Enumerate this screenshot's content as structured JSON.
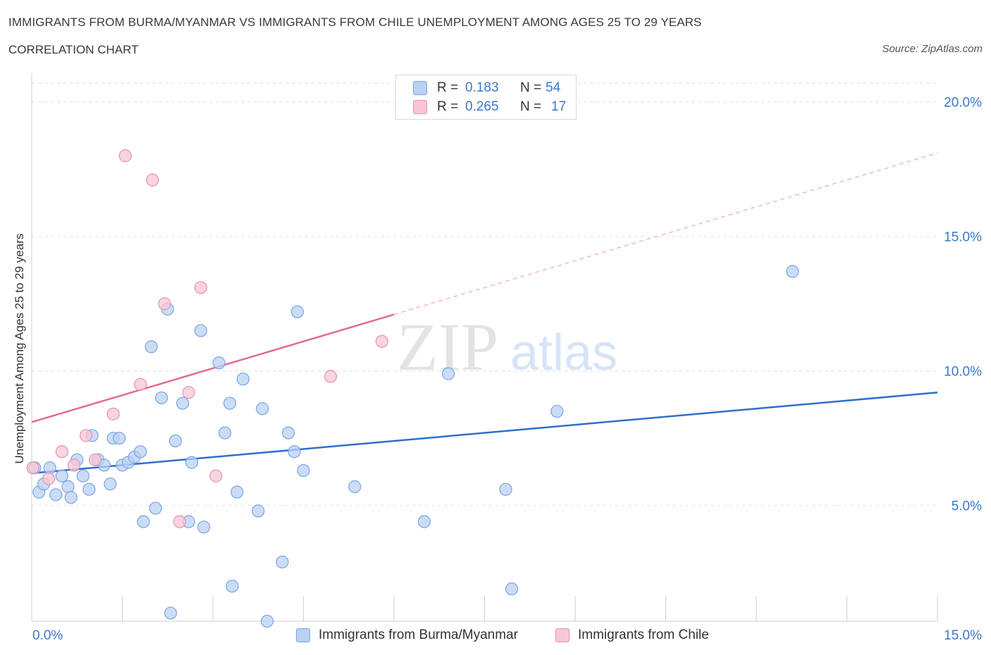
{
  "title": "IMMIGRANTS FROM BURMA/MYANMAR VS IMMIGRANTS FROM CHILE UNEMPLOYMENT AMONG AGES 25 TO 29 YEARS",
  "subtitle": "CORRELATION CHART",
  "source": "Source: ZipAtlas.com",
  "watermark": {
    "zip": "ZIP",
    "atlas": "atlas"
  },
  "legend": {
    "rows": [
      {
        "r_label": "R =",
        "r_value": "0.183",
        "n_label": "N =",
        "n_value": "54"
      },
      {
        "r_label": "R =",
        "r_value": "0.265",
        "n_label": "N =",
        "n_value": "17"
      }
    ]
  },
  "bottom_legend": {
    "series1": "Immigrants from Burma/Myanmar",
    "series2": "Immigrants from Chile"
  },
  "colors": {
    "blue_fill": "#b9d1f3",
    "blue_stroke": "#7aa5e0",
    "blue_line": "#2f6fcc",
    "pink_fill": "#f8c6d6",
    "pink_stroke": "#e792ad",
    "pink_line": "#e26a94",
    "tick_text": "#3d77c9"
  },
  "chart_data": {
    "type": "scatter",
    "title": "IMMIGRANTS FROM BURMA/MYANMAR VS IMMIGRANTS FROM CHILE UNEMPLOYMENT AMONG AGES 25 TO 29 YEARS",
    "xlabel": "",
    "ylabel": "Unemployment Among Ages 25 to 29 years",
    "xlim": [
      0,
      15
    ],
    "ylim": [
      0.7,
      20.7
    ],
    "x_ticks_labeled": [
      {
        "value": 0,
        "label": "0.0%"
      },
      {
        "value": 15,
        "label": "15.0%"
      }
    ],
    "y_ticks": [
      {
        "value": 5,
        "label": "5.0%"
      },
      {
        "value": 10,
        "label": "10.0%"
      },
      {
        "value": 15,
        "label": "15.0%"
      },
      {
        "value": 20,
        "label": "20.0%"
      }
    ],
    "grid": true,
    "legend_position": "top-center",
    "series": [
      {
        "name": "Immigrants from Burma/Myanmar",
        "color": "#b9d1f3",
        "points": [
          [
            0.05,
            6.4
          ],
          [
            0.12,
            5.5
          ],
          [
            0.3,
            6.4
          ],
          [
            0.4,
            5.4
          ],
          [
            0.5,
            6.1
          ],
          [
            0.6,
            5.7
          ],
          [
            0.65,
            5.3
          ],
          [
            0.75,
            6.7
          ],
          [
            0.85,
            6.1
          ],
          [
            0.95,
            5.6
          ],
          [
            1.0,
            7.6
          ],
          [
            1.1,
            6.7
          ],
          [
            1.2,
            6.5
          ],
          [
            1.3,
            5.8
          ],
          [
            1.35,
            7.5
          ],
          [
            1.45,
            7.5
          ],
          [
            1.5,
            6.5
          ],
          [
            1.6,
            6.6
          ],
          [
            1.7,
            6.8
          ],
          [
            1.8,
            7.0
          ],
          [
            1.85,
            4.4
          ],
          [
            1.98,
            10.9
          ],
          [
            2.05,
            4.9
          ],
          [
            2.15,
            9.0
          ],
          [
            2.25,
            12.3
          ],
          [
            2.3,
            1.0
          ],
          [
            2.38,
            7.4
          ],
          [
            2.5,
            8.8
          ],
          [
            2.6,
            4.4
          ],
          [
            2.65,
            6.6
          ],
          [
            2.8,
            11.5
          ],
          [
            2.85,
            4.2
          ],
          [
            3.1,
            10.3
          ],
          [
            3.2,
            7.7
          ],
          [
            3.28,
            8.8
          ],
          [
            3.32,
            2.0
          ],
          [
            3.4,
            5.5
          ],
          [
            3.5,
            9.7
          ],
          [
            3.75,
            4.8
          ],
          [
            3.82,
            8.6
          ],
          [
            3.9,
            0.7
          ],
          [
            4.15,
            2.9
          ],
          [
            4.25,
            7.7
          ],
          [
            4.35,
            7.0
          ],
          [
            4.4,
            12.2
          ],
          [
            4.5,
            6.3
          ],
          [
            5.35,
            5.7
          ],
          [
            6.5,
            4.4
          ],
          [
            6.9,
            9.9
          ],
          [
            7.85,
            5.6
          ],
          [
            7.95,
            1.9
          ],
          [
            8.7,
            8.5
          ],
          [
            12.6,
            13.7
          ],
          [
            0.2,
            5.8
          ]
        ]
      },
      {
        "name": "Immigrants from Chile",
        "color": "#f8c6d6",
        "points": [
          [
            0.02,
            6.4
          ],
          [
            0.28,
            6.0
          ],
          [
            0.5,
            7.0
          ],
          [
            0.7,
            6.5
          ],
          [
            0.9,
            7.6
          ],
          [
            1.05,
            6.7
          ],
          [
            1.35,
            8.4
          ],
          [
            1.55,
            18.0
          ],
          [
            1.8,
            9.5
          ],
          [
            2.0,
            17.1
          ],
          [
            2.2,
            12.5
          ],
          [
            2.45,
            4.4
          ],
          [
            2.6,
            9.2
          ],
          [
            2.8,
            13.1
          ],
          [
            3.05,
            6.1
          ],
          [
            4.95,
            9.8
          ],
          [
            5.8,
            11.1
          ]
        ]
      }
    ],
    "trend_lines": [
      {
        "series": "Immigrants from Burma/Myanmar",
        "from": [
          0,
          6.2
        ],
        "to": [
          15,
          9.2
        ],
        "style": "solid"
      },
      {
        "series": "Immigrants from Chile",
        "from": [
          0,
          8.1
        ],
        "to": [
          6.0,
          12.1
        ],
        "style": "solid",
        "extended_to": [
          15,
          18.1
        ],
        "extended_style": "dashed"
      }
    ]
  }
}
